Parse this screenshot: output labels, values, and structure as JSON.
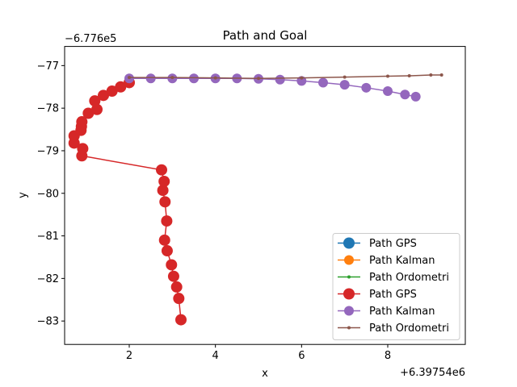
{
  "chart_data": {
    "type": "line",
    "title": "Path and Goal",
    "xlabel": "x",
    "ylabel": "y",
    "x_offset_label": "+6.39754e6",
    "y_offset_label": "−6.776e5",
    "xlim": [
      0.5,
      9.8
    ],
    "ylim": [
      -83.55,
      -76.55
    ],
    "x_ticks": [
      2,
      4,
      6,
      8
    ],
    "x_tick_labels": [
      "2",
      "4",
      "6",
      "8"
    ],
    "y_ticks": [
      -77,
      -78,
      -79,
      -80,
      -81,
      -82,
      -83
    ],
    "y_tick_labels": [
      "−77",
      "−78",
      "−79",
      "−80",
      "−81",
      "−82",
      "−83"
    ],
    "legend_position": "lower right",
    "grid": false,
    "series": [
      {
        "name": "Path GPS",
        "color": "#1f77b4",
        "marker": "circle-large",
        "x": [],
        "y": []
      },
      {
        "name": "Path Kalman",
        "color": "#ff7f0e",
        "marker": "circle-medium",
        "x": [],
        "y": []
      },
      {
        "name": "Path Ordometri",
        "color": "#2ca02c",
        "marker": "dot",
        "x": [],
        "y": []
      },
      {
        "name": "Path GPS",
        "color": "#d62728",
        "marker": "circle-large",
        "x": [
          3.2,
          3.15,
          3.1,
          3.03,
          2.98,
          2.88,
          2.82,
          2.87,
          2.83,
          2.78,
          2.81,
          2.75,
          0.9,
          0.92,
          0.72,
          0.72,
          0.88,
          0.89,
          0.9,
          1.05,
          1.25,
          1.2,
          1.4,
          1.6,
          1.8,
          2.0
        ],
        "y": [
          -82.97,
          -82.47,
          -82.2,
          -81.95,
          -81.68,
          -81.35,
          -81.1,
          -80.65,
          -80.2,
          -79.93,
          -79.72,
          -79.45,
          -79.12,
          -78.95,
          -78.82,
          -78.65,
          -78.52,
          -78.43,
          -78.32,
          -78.12,
          -78.03,
          -77.83,
          -77.7,
          -77.6,
          -77.5,
          -77.4
        ]
      },
      {
        "name": "Path Kalman",
        "color": "#9467bd",
        "marker": "circle-medium",
        "x": [
          2.0,
          2.5,
          3.0,
          3.5,
          4.0,
          4.5,
          5.0,
          5.5,
          6.0,
          6.5,
          7.0,
          7.5,
          8.0,
          8.4,
          8.65
        ],
        "y": [
          -77.3,
          -77.3,
          -77.3,
          -77.3,
          -77.3,
          -77.3,
          -77.31,
          -77.33,
          -77.36,
          -77.4,
          -77.45,
          -77.52,
          -77.6,
          -77.68,
          -77.73
        ]
      },
      {
        "name": "Path Ordometri",
        "color": "#8c564b",
        "marker": "dot",
        "x": [
          2.0,
          3.0,
          4.0,
          5.0,
          6.0,
          7.0,
          8.0,
          8.5,
          9.0,
          9.25
        ],
        "y": [
          -77.28,
          -77.28,
          -77.29,
          -77.3,
          -77.29,
          -77.27,
          -77.25,
          -77.24,
          -77.22,
          -77.22
        ]
      }
    ]
  }
}
